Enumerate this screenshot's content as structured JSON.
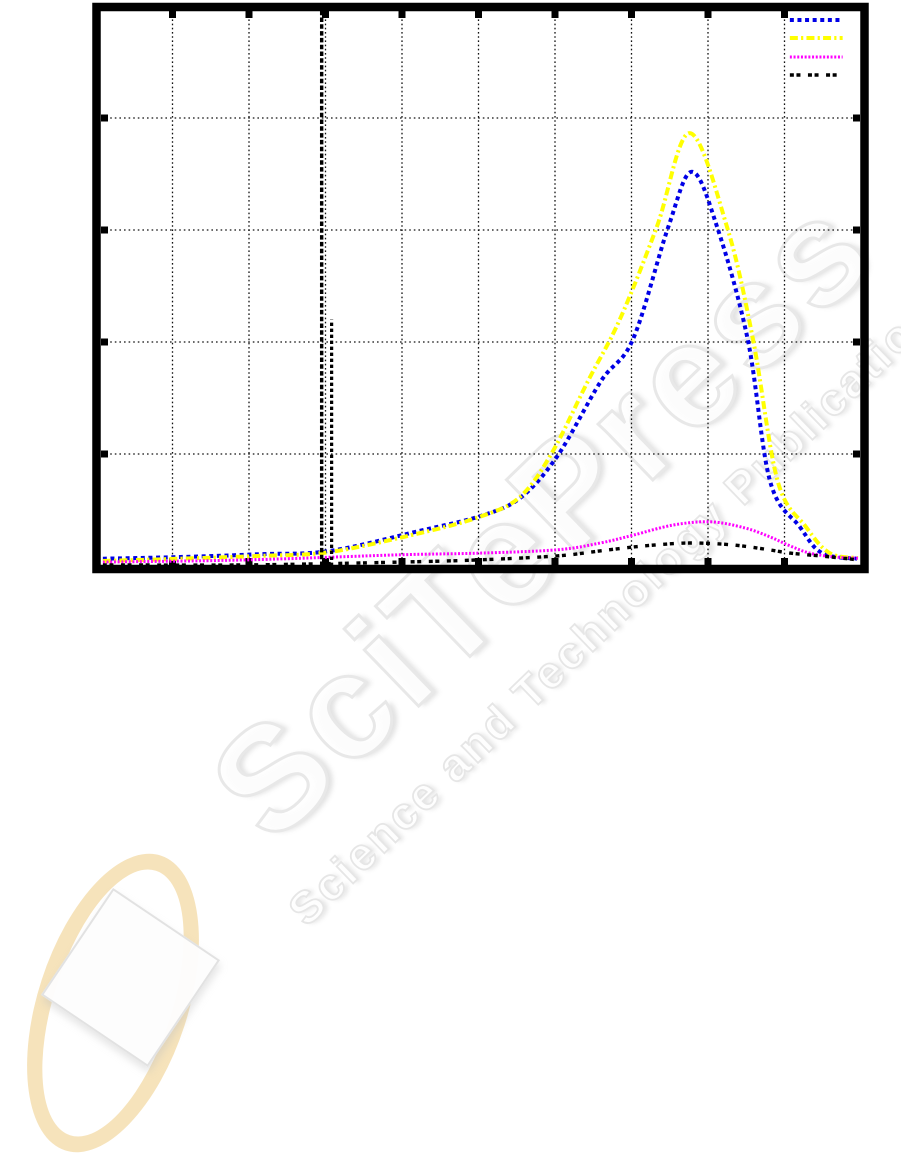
{
  "page": {
    "background": "#ffffff"
  },
  "chart_data": {
    "type": "line",
    "title": "",
    "xlabel": "",
    "ylabel": "",
    "axes": {
      "x": {
        "range": [
          0,
          1
        ],
        "gridline_positions": [
          0.1,
          0.2,
          0.3,
          0.4,
          0.5,
          0.6,
          0.7,
          0.8,
          0.9
        ],
        "tick_labels_visible": false
      },
      "y": {
        "range": [
          0,
          1
        ],
        "gridline_positions": [
          0.2,
          0.4,
          0.6,
          0.8
        ],
        "tick_labels_visible": false
      }
    },
    "grid": true,
    "grid_style": "dotted-black",
    "frame_color": "#000000",
    "legend": {
      "position": "top-right",
      "labels_visible": false,
      "entries_follow_series_order": true
    },
    "series": [
      {
        "id": "blue-dotted",
        "color": "#0000e6",
        "dash": "4 3.6",
        "width": 4,
        "points": [
          [
            0.009,
            0.013
          ],
          [
            0.11,
            0.016
          ],
          [
            0.214,
            0.021
          ],
          [
            0.306,
            0.027
          ],
          [
            0.424,
            0.063
          ],
          [
            0.502,
            0.089
          ],
          [
            0.554,
            0.121
          ],
          [
            0.603,
            0.196
          ],
          [
            0.66,
            0.33
          ],
          [
            0.702,
            0.405
          ],
          [
            0.748,
            0.605
          ],
          [
            0.779,
            0.704
          ],
          [
            0.812,
            0.605
          ],
          [
            0.852,
            0.404
          ],
          [
            0.881,
            0.152
          ],
          [
            0.92,
            0.07
          ],
          [
            0.949,
            0.023
          ],
          [
            0.995,
            0.013
          ]
        ]
      },
      {
        "id": "yellow-dash-dot",
        "color": "#ffff00",
        "dash": "8 3.2 2.2 3.2",
        "width": 4,
        "points": [
          [
            0.009,
            0.009
          ],
          [
            0.11,
            0.013
          ],
          [
            0.214,
            0.018
          ],
          [
            0.306,
            0.025
          ],
          [
            0.424,
            0.059
          ],
          [
            0.502,
            0.088
          ],
          [
            0.554,
            0.123
          ],
          [
            0.596,
            0.202
          ],
          [
            0.643,
            0.33
          ],
          [
            0.685,
            0.441
          ],
          [
            0.733,
            0.605
          ],
          [
            0.776,
            0.773
          ],
          [
            0.825,
            0.605
          ],
          [
            0.859,
            0.404
          ],
          [
            0.891,
            0.152
          ],
          [
            0.928,
            0.07
          ],
          [
            0.959,
            0.023
          ],
          [
            0.996,
            0.014
          ]
        ]
      },
      {
        "id": "magenta-fine-dotted",
        "color": "#ff00ff",
        "dash": "2 1.7",
        "width": 3,
        "points": [
          [
            0.009,
            0.007
          ],
          [
            0.201,
            0.011
          ],
          [
            0.397,
            0.02
          ],
          [
            0.502,
            0.023
          ],
          [
            0.603,
            0.029
          ],
          [
            0.659,
            0.041
          ],
          [
            0.702,
            0.055
          ],
          [
            0.754,
            0.073
          ],
          [
            0.803,
            0.079
          ],
          [
            0.848,
            0.068
          ],
          [
            0.881,
            0.052
          ],
          [
            0.907,
            0.036
          ],
          [
            0.933,
            0.023
          ],
          [
            0.966,
            0.016
          ],
          [
            0.996,
            0.014
          ]
        ]
      },
      {
        "id": "black-paired-dash",
        "color": "#000000",
        "dash": "4 2.6 4 7.5",
        "width": 3.4,
        "points": [
          [
            0.009,
            0.002
          ],
          [
            0.201,
            0.002
          ],
          [
            0.397,
            0.007
          ],
          [
            0.502,
            0.011
          ],
          [
            0.603,
            0.018
          ],
          [
            0.659,
            0.027
          ],
          [
            0.718,
            0.036
          ],
          [
            0.776,
            0.041
          ],
          [
            0.829,
            0.038
          ],
          [
            0.875,
            0.03
          ],
          [
            0.907,
            0.023
          ],
          [
            0.946,
            0.018
          ],
          [
            0.996,
            0.011
          ]
        ]
      }
    ],
    "markers": [
      {
        "id": "vertical-dashed-line-full",
        "x": 0.295,
        "y_from": 0,
        "y_to": 1,
        "color": "#000000",
        "dash": "4.5 2.3",
        "width": 3.4
      },
      {
        "id": "vertical-dashed-line-lower",
        "x": 0.308,
        "y_from": 0,
        "y_to": 0.44,
        "color": "#000000",
        "dash": "3.4 2.6",
        "width": 3.2
      }
    ]
  },
  "watermark": {
    "brand": "SciTePress",
    "tagline": "Science and Technology Publications",
    "angle_deg": -44,
    "text_outline_color": "#e6e6e6",
    "logo_ellipse_color": "#f3d9a4",
    "logo_diamond_color": "#fdfdfd"
  }
}
